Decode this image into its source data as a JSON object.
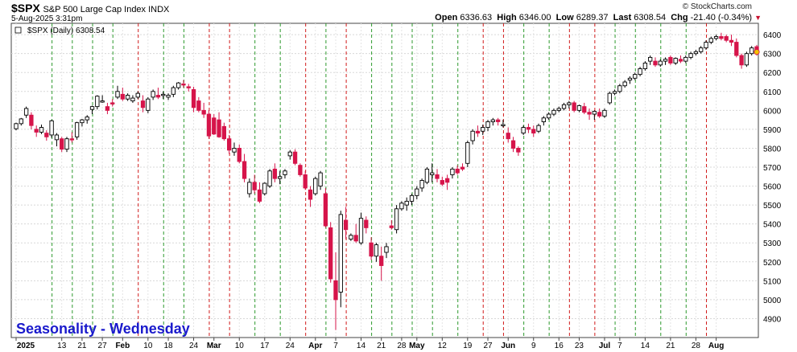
{
  "header": {
    "symbol": "$SPX",
    "description": "S&P 500 Large Cap Index  INDX",
    "datetime": "5-Aug-2025 3:31pm",
    "brand": "© StockCharts.com",
    "open_label": "Open",
    "open": "6336.63",
    "high_label": "High",
    "high": "6346.00",
    "low_label": "Low",
    "low": "6289.37",
    "last_label": "Last",
    "last": "6308.54",
    "chg_label": "Chg",
    "chg": "-21.40 (-0.34%)"
  },
  "chart_data": {
    "type": "candlestick",
    "legend": "$SPX (Daily) 6308.54",
    "annotation": "Seasonality - Wednesday",
    "ylim": [
      4800,
      6460
    ],
    "y_ticks": [
      4900,
      5000,
      5100,
      5200,
      5300,
      5400,
      5500,
      5600,
      5700,
      5800,
      5900,
      6000,
      6100,
      6200,
      6300,
      6400
    ],
    "x_ticks": [
      {
        "i": 0,
        "label": "2025",
        "bold": true
      },
      {
        "i": 9,
        "label": "13"
      },
      {
        "i": 13,
        "label": "21"
      },
      {
        "i": 17,
        "label": "27"
      },
      {
        "i": 21,
        "label": "Feb",
        "bold": true
      },
      {
        "i": 26,
        "label": "10"
      },
      {
        "i": 30,
        "label": "18"
      },
      {
        "i": 35,
        "label": "24"
      },
      {
        "i": 39,
        "label": "Mar",
        "bold": true
      },
      {
        "i": 44,
        "label": "10"
      },
      {
        "i": 49,
        "label": "17"
      },
      {
        "i": 54,
        "label": "24"
      },
      {
        "i": 59,
        "label": "Apr",
        "bold": true
      },
      {
        "i": 63,
        "label": "7"
      },
      {
        "i": 68,
        "label": "14"
      },
      {
        "i": 72,
        "label": "21"
      },
      {
        "i": 76,
        "label": "28"
      },
      {
        "i": 79,
        "label": "May",
        "bold": true
      },
      {
        "i": 84,
        "label": "12"
      },
      {
        "i": 89,
        "label": "19"
      },
      {
        "i": 93,
        "label": "27"
      },
      {
        "i": 97,
        "label": "Jun",
        "bold": true
      },
      {
        "i": 102,
        "label": "9"
      },
      {
        "i": 107,
        "label": "16"
      },
      {
        "i": 111,
        "label": "23"
      },
      {
        "i": 116,
        "label": "Jul",
        "bold": true
      },
      {
        "i": 119,
        "label": "7"
      },
      {
        "i": 124,
        "label": "14"
      },
      {
        "i": 129,
        "label": "21"
      },
      {
        "i": 134,
        "label": "28"
      },
      {
        "i": 138,
        "label": "Aug",
        "bold": true
      }
    ],
    "wednesday_lines": [
      {
        "i": 7,
        "c": "g"
      },
      {
        "i": 11,
        "c": "g"
      },
      {
        "i": 15,
        "c": "g"
      },
      {
        "i": 19,
        "c": "g"
      },
      {
        "i": 24,
        "c": "r"
      },
      {
        "i": 29,
        "c": "g"
      },
      {
        "i": 33,
        "c": "g"
      },
      {
        "i": 38,
        "c": "r"
      },
      {
        "i": 42,
        "c": "r"
      },
      {
        "i": 47,
        "c": "g"
      },
      {
        "i": 52,
        "c": "g"
      },
      {
        "i": 57,
        "c": "r"
      },
      {
        "i": 61,
        "c": "g"
      },
      {
        "i": 65,
        "c": "r"
      },
      {
        "i": 70,
        "c": "g"
      },
      {
        "i": 74,
        "c": "g"
      },
      {
        "i": 78,
        "c": "g"
      },
      {
        "i": 82,
        "c": "g"
      },
      {
        "i": 87,
        "c": "g"
      },
      {
        "i": 92,
        "c": "r"
      },
      {
        "i": 96,
        "c": "r"
      },
      {
        "i": 100,
        "c": "g"
      },
      {
        "i": 105,
        "c": "g"
      },
      {
        "i": 109,
        "c": "r"
      },
      {
        "i": 114,
        "c": "r"
      },
      {
        "i": 118,
        "c": "g"
      },
      {
        "i": 122,
        "c": "g"
      },
      {
        "i": 127,
        "c": "g"
      },
      {
        "i": 132,
        "c": "g"
      },
      {
        "i": 136,
        "c": "r"
      }
    ],
    "candles": [
      [
        5903,
        5935,
        5895,
        5930
      ],
      [
        5930,
        5960,
        5920,
        5955
      ],
      [
        5975,
        6020,
        5960,
        6010
      ],
      [
        5975,
        5990,
        5900,
        5920
      ],
      [
        5900,
        5920,
        5860,
        5885
      ],
      [
        5885,
        5925,
        5875,
        5910
      ],
      [
        5880,
        5895,
        5840,
        5860
      ],
      [
        5870,
        5950,
        5855,
        5945
      ],
      [
        5845,
        5880,
        5810,
        5870
      ],
      [
        5850,
        5860,
        5780,
        5795
      ],
      [
        5795,
        5860,
        5780,
        5850
      ],
      [
        5850,
        5885,
        5830,
        5845
      ],
      [
        5860,
        5940,
        5845,
        5935
      ],
      [
        5935,
        5955,
        5915,
        5950
      ],
      [
        5950,
        5975,
        5930,
        5965
      ],
      [
        6005,
        6025,
        5980,
        6020
      ],
      [
        6020,
        6080,
        6005,
        6075
      ],
      [
        6050,
        6080,
        6040,
        6050
      ],
      [
        6020,
        6040,
        5980,
        6000
      ],
      [
        6040,
        6060,
        6020,
        6035
      ],
      [
        6070,
        6130,
        6060,
        6100
      ],
      [
        6085,
        6120,
        6050,
        6060
      ],
      [
        6060,
        6090,
        6050,
        6080
      ],
      [
        6050,
        6080,
        6040,
        6065
      ],
      [
        6070,
        6100,
        6060,
        6090
      ],
      [
        6050,
        6080,
        5990,
        6015
      ],
      [
        6000,
        6070,
        5985,
        6060
      ],
      [
        6070,
        6110,
        6055,
        6100
      ],
      [
        6080,
        6120,
        6060,
        6070
      ],
      [
        6080,
        6100,
        6060,
        6085
      ],
      [
        6070,
        6090,
        6055,
        6080
      ],
      [
        6085,
        6130,
        6070,
        6120
      ],
      [
        6120,
        6150,
        6110,
        6145
      ],
      [
        6140,
        6160,
        6120,
        6135
      ],
      [
        6125,
        6140,
        6100,
        6120
      ],
      [
        6110,
        6125,
        5990,
        6015
      ],
      [
        6050,
        6070,
        5990,
        6000
      ],
      [
        6000,
        6040,
        5960,
        5980
      ],
      [
        5980,
        6000,
        5850,
        5865
      ],
      [
        5960,
        5980,
        5870,
        5875
      ],
      [
        5950,
        5990,
        5855,
        5860
      ],
      [
        5915,
        5935,
        5840,
        5850
      ],
      [
        5850,
        5870,
        5770,
        5790
      ],
      [
        5780,
        5830,
        5760,
        5800
      ],
      [
        5800,
        5820,
        5720,
        5730
      ],
      [
        5730,
        5770,
        5620,
        5640
      ],
      [
        5560,
        5640,
        5540,
        5620
      ],
      [
        5620,
        5660,
        5560,
        5580
      ],
      [
        5580,
        5620,
        5510,
        5520
      ],
      [
        5560,
        5620,
        5550,
        5615
      ],
      [
        5600,
        5690,
        5590,
        5680
      ],
      [
        5690,
        5720,
        5620,
        5640
      ],
      [
        5640,
        5680,
        5610,
        5650
      ],
      [
        5660,
        5690,
        5640,
        5680
      ],
      [
        5760,
        5790,
        5740,
        5780
      ],
      [
        5780,
        5795,
        5710,
        5720
      ],
      [
        5710,
        5720,
        5650,
        5660
      ],
      [
        5660,
        5680,
        5580,
        5590
      ],
      [
        5580,
        5600,
        5490,
        5530
      ],
      [
        5560,
        5650,
        5550,
        5640
      ],
      [
        5600,
        5680,
        5580,
        5670
      ],
      [
        5560,
        5590,
        5380,
        5390
      ],
      [
        5380,
        5410,
        5090,
        5110
      ],
      [
        5100,
        5250,
        4840,
        5000
      ],
      [
        5040,
        5470,
        4960,
        5450
      ],
      [
        5420,
        5490,
        5320,
        5370
      ],
      [
        5320,
        5350,
        5310,
        5340
      ],
      [
        5340,
        5400,
        5300,
        5310
      ],
      [
        5300,
        5460,
        5290,
        5430
      ],
      [
        5420,
        5440,
        5350,
        5380
      ],
      [
        5300,
        5330,
        5210,
        5230
      ],
      [
        5230,
        5300,
        5200,
        5290
      ],
      [
        5230,
        5280,
        5100,
        5180
      ],
      [
        5250,
        5300,
        5220,
        5280
      ],
      [
        5390,
        5420,
        5370,
        5380
      ],
      [
        5370,
        5500,
        5350,
        5480
      ],
      [
        5480,
        5520,
        5470,
        5510
      ],
      [
        5500,
        5540,
        5470,
        5520
      ],
      [
        5520,
        5560,
        5500,
        5550
      ],
      [
        5550,
        5600,
        5530,
        5585
      ],
      [
        5590,
        5640,
        5570,
        5630
      ],
      [
        5620,
        5700,
        5610,
        5690
      ],
      [
        5660,
        5720,
        5620,
        5670
      ],
      [
        5660,
        5690,
        5620,
        5640
      ],
      [
        5630,
        5650,
        5600,
        5610
      ],
      [
        5640,
        5660,
        5580,
        5620
      ],
      [
        5660,
        5700,
        5640,
        5690
      ],
      [
        5690,
        5710,
        5660,
        5670
      ],
      [
        5700,
        5720,
        5680,
        5690
      ],
      [
        5720,
        5840,
        5700,
        5830
      ],
      [
        5840,
        5900,
        5820,
        5890
      ],
      [
        5890,
        5920,
        5860,
        5880
      ],
      [
        5890,
        5925,
        5870,
        5910
      ],
      [
        5910,
        5950,
        5890,
        5940
      ],
      [
        5940,
        5960,
        5920,
        5950
      ],
      [
        5950,
        5960,
        5920,
        5940
      ],
      [
        5920,
        5950,
        5910,
        5925
      ],
      [
        5880,
        5910,
        5830,
        5850
      ],
      [
        5840,
        5860,
        5780,
        5800
      ],
      [
        5800,
        5810,
        5760,
        5780
      ],
      [
        5880,
        5920,
        5870,
        5910
      ],
      [
        5910,
        5930,
        5880,
        5900
      ],
      [
        5900,
        5920,
        5860,
        5880
      ],
      [
        5890,
        5930,
        5880,
        5920
      ],
      [
        5940,
        5970,
        5920,
        5960
      ],
      [
        5960,
        5990,
        5950,
        5980
      ],
      [
        5980,
        6010,
        5970,
        6000
      ],
      [
        6000,
        6020,
        5990,
        6010
      ],
      [
        6010,
        6040,
        6000,
        6030
      ],
      [
        6030,
        6050,
        6010,
        6040
      ],
      [
        6040,
        6050,
        5990,
        6000
      ],
      [
        6000,
        6030,
        5990,
        6025
      ],
      [
        6020,
        6040,
        5980,
        5990
      ],
      [
        5990,
        6010,
        5950,
        5980
      ],
      [
        5980,
        6000,
        5950,
        5995
      ],
      [
        5990,
        6010,
        5960,
        5970
      ],
      [
        5970,
        6010,
        5960,
        6000
      ],
      [
        6040,
        6100,
        6030,
        6090
      ],
      [
        6090,
        6110,
        6080,
        6100
      ],
      [
        6100,
        6140,
        6090,
        6130
      ],
      [
        6130,
        6160,
        6120,
        6150
      ],
      [
        6160,
        6180,
        6140,
        6170
      ],
      [
        6170,
        6200,
        6160,
        6190
      ],
      [
        6190,
        6230,
        6180,
        6220
      ],
      [
        6220,
        6260,
        6210,
        6250
      ],
      [
        6260,
        6290,
        6240,
        6280
      ],
      [
        6260,
        6280,
        6230,
        6240
      ],
      [
        6240,
        6270,
        6230,
        6260
      ],
      [
        6260,
        6280,
        6240,
        6270
      ],
      [
        6280,
        6290,
        6240,
        6250
      ],
      [
        6250,
        6280,
        6240,
        6275
      ],
      [
        6270,
        6290,
        6250,
        6260
      ],
      [
        6260,
        6290,
        6250,
        6280
      ],
      [
        6280,
        6310,
        6270,
        6300
      ],
      [
        6300,
        6320,
        6290,
        6310
      ],
      [
        6310,
        6340,
        6300,
        6330
      ],
      [
        6330,
        6370,
        6320,
        6360
      ],
      [
        6360,
        6390,
        6350,
        6380
      ],
      [
        6380,
        6400,
        6370,
        6390
      ],
      [
        6390,
        6410,
        6370,
        6380
      ],
      [
        6390,
        6400,
        6360,
        6370
      ],
      [
        6370,
        6400,
        6340,
        6360
      ],
      [
        6360,
        6380,
        6280,
        6290
      ],
      [
        6290,
        6300,
        6220,
        6240
      ],
      [
        6240,
        6310,
        6230,
        6300
      ],
      [
        6300,
        6340,
        6290,
        6330
      ],
      [
        6336.63,
        6346.0,
        6289.37,
        6308.54
      ]
    ],
    "colors": {
      "up": "#ffffff",
      "down": "#d6144a",
      "outline": "#000000",
      "green_line": "#2e9a2e",
      "red_line": "#d11b1b",
      "annotation": "#1a1acc",
      "last": "#f2c400"
    }
  }
}
